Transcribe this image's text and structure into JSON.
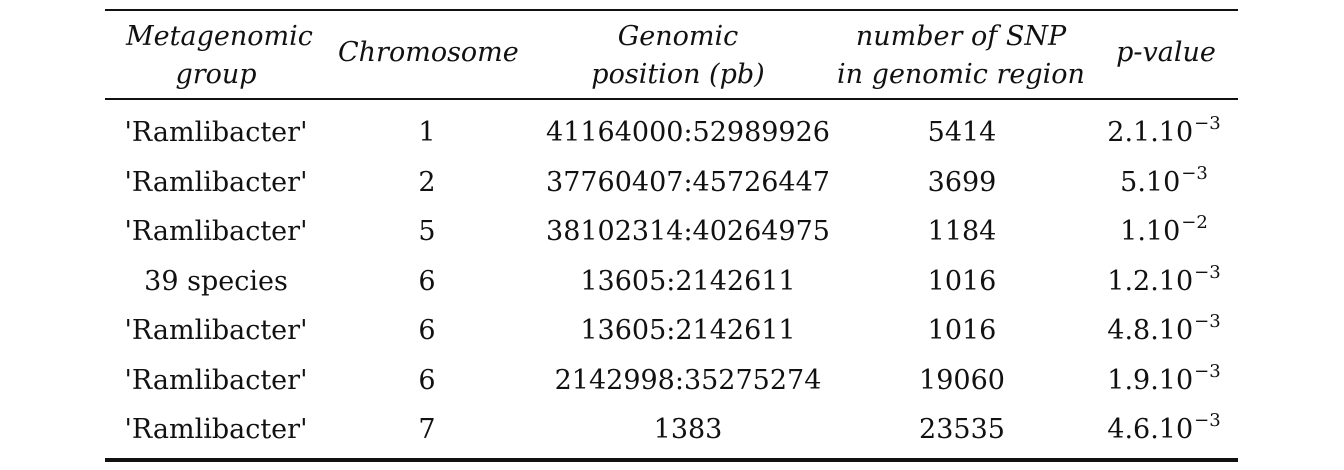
{
  "table": {
    "headers": [
      {
        "line1": "Metagenomic",
        "line2": "group"
      },
      {
        "line1": "Chromosome",
        "line2": ""
      },
      {
        "line1": "Genomic",
        "line2": "position (pb)"
      },
      {
        "line1": "number of SNP",
        "line2": "in genomic region"
      },
      {
        "line1": "p-value",
        "line2": ""
      }
    ],
    "rows": [
      {
        "group": "'Ramlibacter'",
        "chromosome": "1",
        "position": "41164000:52989926",
        "snp": "5414",
        "p_mant": "2.1.10",
        "p_exp": "−3"
      },
      {
        "group": "'Ramlibacter'",
        "chromosome": "2",
        "position": "37760407:45726447",
        "snp": "3699",
        "p_mant": "5.10",
        "p_exp": "−3"
      },
      {
        "group": "'Ramlibacter'",
        "chromosome": "5",
        "position": "38102314:40264975",
        "snp": "1184",
        "p_mant": "1.10",
        "p_exp": "−2"
      },
      {
        "group": "39 species",
        "chromosome": "6",
        "position": "13605:2142611",
        "snp": "1016",
        "p_mant": "1.2.10",
        "p_exp": "−3"
      },
      {
        "group": "'Ramlibacter'",
        "chromosome": "6",
        "position": "13605:2142611",
        "snp": "1016",
        "p_mant": "4.8.10",
        "p_exp": "−3"
      },
      {
        "group": "'Ramlibacter'",
        "chromosome": "6",
        "position": "2142998:35275274",
        "snp": "19060",
        "p_mant": "1.9.10",
        "p_exp": "−3"
      },
      {
        "group": "'Ramlibacter'",
        "chromosome": "7",
        "position": "1383",
        "snp": "23535",
        "p_mant": "4.6.10",
        "p_exp": "−3"
      }
    ]
  }
}
